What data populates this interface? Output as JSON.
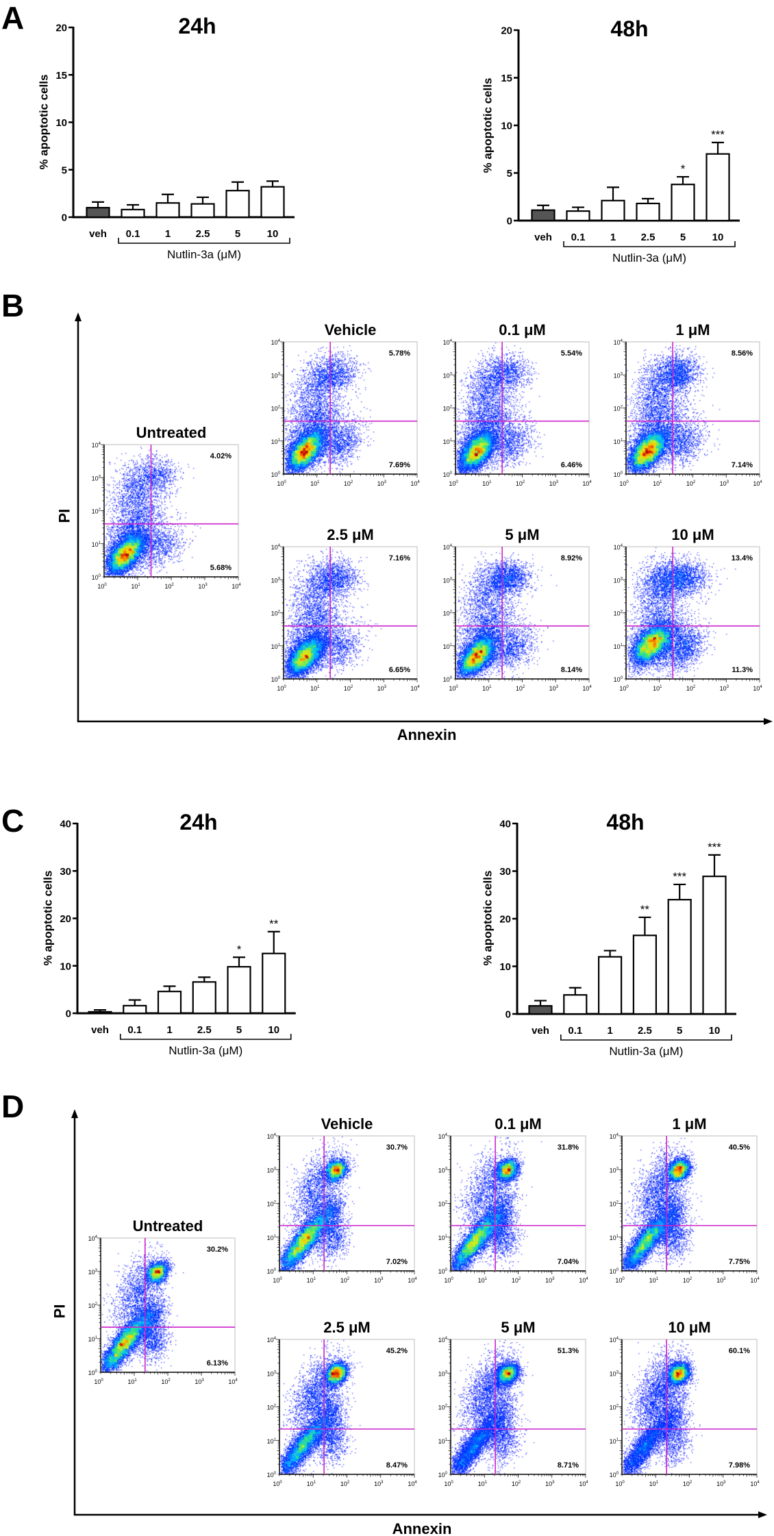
{
  "panel_labels": [
    "A",
    "B",
    "C",
    "D"
  ],
  "colors": {
    "vehicle_bar": "#555555",
    "treated_bar": "#ffffff",
    "gate_line": "#cc22cc",
    "density_low": "#0000ff",
    "density_high": "#c00000"
  },
  "chart_data": [
    {
      "panel": "A",
      "type": "bar",
      "title": "24h",
      "ylabel": "% apoptotic cells",
      "categories": [
        "veh",
        "0.1",
        "1",
        "2.5",
        "5",
        "10"
      ],
      "values": [
        1.0,
        0.8,
        1.5,
        1.4,
        2.8,
        3.2
      ],
      "errors": [
        0.6,
        0.5,
        0.9,
        0.7,
        0.9,
        0.6
      ],
      "significance": [
        "",
        "",
        "",
        "",
        "",
        ""
      ],
      "group_label": "Nutlin-3a (μM)",
      "ylim": [
        0,
        20
      ],
      "yticks": [
        "0",
        "5",
        "10",
        "15",
        "20"
      ],
      "grid": false
    },
    {
      "panel": "A",
      "type": "bar",
      "title": "48h",
      "ylabel": "% apoptotic cells",
      "categories": [
        "veh",
        "0.1",
        "1",
        "2.5",
        "5",
        "10"
      ],
      "values": [
        1.1,
        1.0,
        2.1,
        1.8,
        3.8,
        7.0
      ],
      "errors": [
        0.5,
        0.4,
        1.4,
        0.5,
        0.8,
        1.2
      ],
      "significance": [
        "",
        "",
        "",
        "",
        "*",
        "***"
      ],
      "group_label": "Nutlin-3a (μM)",
      "ylim": [
        0,
        20
      ],
      "yticks": [
        "0",
        "5",
        "10",
        "15",
        "20"
      ],
      "grid": false
    },
    {
      "panel": "C",
      "type": "bar",
      "title": "24h",
      "ylabel": "% apoptotic cells",
      "categories": [
        "veh",
        "0.1",
        "1",
        "2.5",
        "5",
        "10"
      ],
      "values": [
        0.3,
        1.6,
        4.6,
        6.6,
        9.8,
        12.6
      ],
      "errors": [
        0.4,
        1.2,
        1.1,
        1.0,
        2.0,
        4.6
      ],
      "significance": [
        "",
        "",
        "",
        "",
        "*",
        "**"
      ],
      "group_label": "Nutlin-3a (μM)",
      "ylim": [
        0,
        40
      ],
      "yticks": [
        "0",
        "10",
        "20",
        "30",
        "40"
      ],
      "grid": false
    },
    {
      "panel": "C",
      "type": "bar",
      "title": "48h",
      "ylabel": "% apoptotic cells",
      "categories": [
        "veh",
        "0.1",
        "1",
        "2.5",
        "5",
        "10"
      ],
      "values": [
        1.7,
        4.0,
        12.0,
        16.5,
        24.0,
        28.9
      ],
      "errors": [
        1.1,
        1.5,
        1.3,
        3.8,
        3.2,
        4.5
      ],
      "significance": [
        "",
        "",
        "",
        "**",
        "***",
        "***"
      ],
      "group_label": "Nutlin-3a (μM)",
      "ylim": [
        0,
        40
      ],
      "yticks": [
        "0",
        "10",
        "20",
        "30",
        "40"
      ],
      "grid": false
    }
  ],
  "flow_panels": [
    {
      "panel": "B",
      "type": "scatter",
      "x_axis_label": "Annexin",
      "y_axis_label": "PI",
      "axis_scale": "log",
      "axis_range": [
        1,
        10000
      ],
      "tick_base": "10",
      "tick_exponents": [
        "0",
        "1",
        "2",
        "3",
        "4"
      ],
      "gate": {
        "annexin": 25,
        "pi": 40
      },
      "plots": [
        {
          "title": "Untreated",
          "upper_right": "4.02%",
          "lower_right": "5.68%"
        },
        {
          "title": "Vehicle",
          "upper_right": "5.78%",
          "lower_right": "7.69%"
        },
        {
          "title": "0.1 μM",
          "upper_right": "5.54%",
          "lower_right": "6.46%"
        },
        {
          "title": "1 μM",
          "upper_right": "8.56%",
          "lower_right": "7.14%"
        },
        {
          "title": "2.5 μM",
          "upper_right": "7.16%",
          "lower_right": "6.65%"
        },
        {
          "title": "5 μM",
          "upper_right": "8.92%",
          "lower_right": "8.14%"
        },
        {
          "title": "10 μM",
          "upper_right": "13.4%",
          "lower_right": "11.3%"
        }
      ]
    },
    {
      "panel": "D",
      "type": "scatter",
      "x_axis_label": "Annexin",
      "y_axis_label": "PI",
      "axis_scale": "log",
      "axis_range": [
        1,
        10000
      ],
      "tick_base": "10",
      "tick_exponents": [
        "0",
        "1",
        "2",
        "3",
        "4"
      ],
      "gate": {
        "annexin": 21,
        "pi": 22
      },
      "plots": [
        {
          "title": "Untreated",
          "upper_right": "30.2%",
          "lower_right": "6.13%"
        },
        {
          "title": "Vehicle",
          "upper_right": "30.7%",
          "lower_right": "7.02%"
        },
        {
          "title": "0.1 μM",
          "upper_right": "31.8%",
          "lower_right": "7.04%"
        },
        {
          "title": "1 μM",
          "upper_right": "40.5%",
          "lower_right": "7.75%"
        },
        {
          "title": "2.5 μM",
          "upper_right": "45.2%",
          "lower_right": "8.47%"
        },
        {
          "title": "5 μM",
          "upper_right": "51.3%",
          "lower_right": "8.71%"
        },
        {
          "title": "10 μM",
          "upper_right": "60.1%",
          "lower_right": "7.98%"
        }
      ]
    }
  ]
}
